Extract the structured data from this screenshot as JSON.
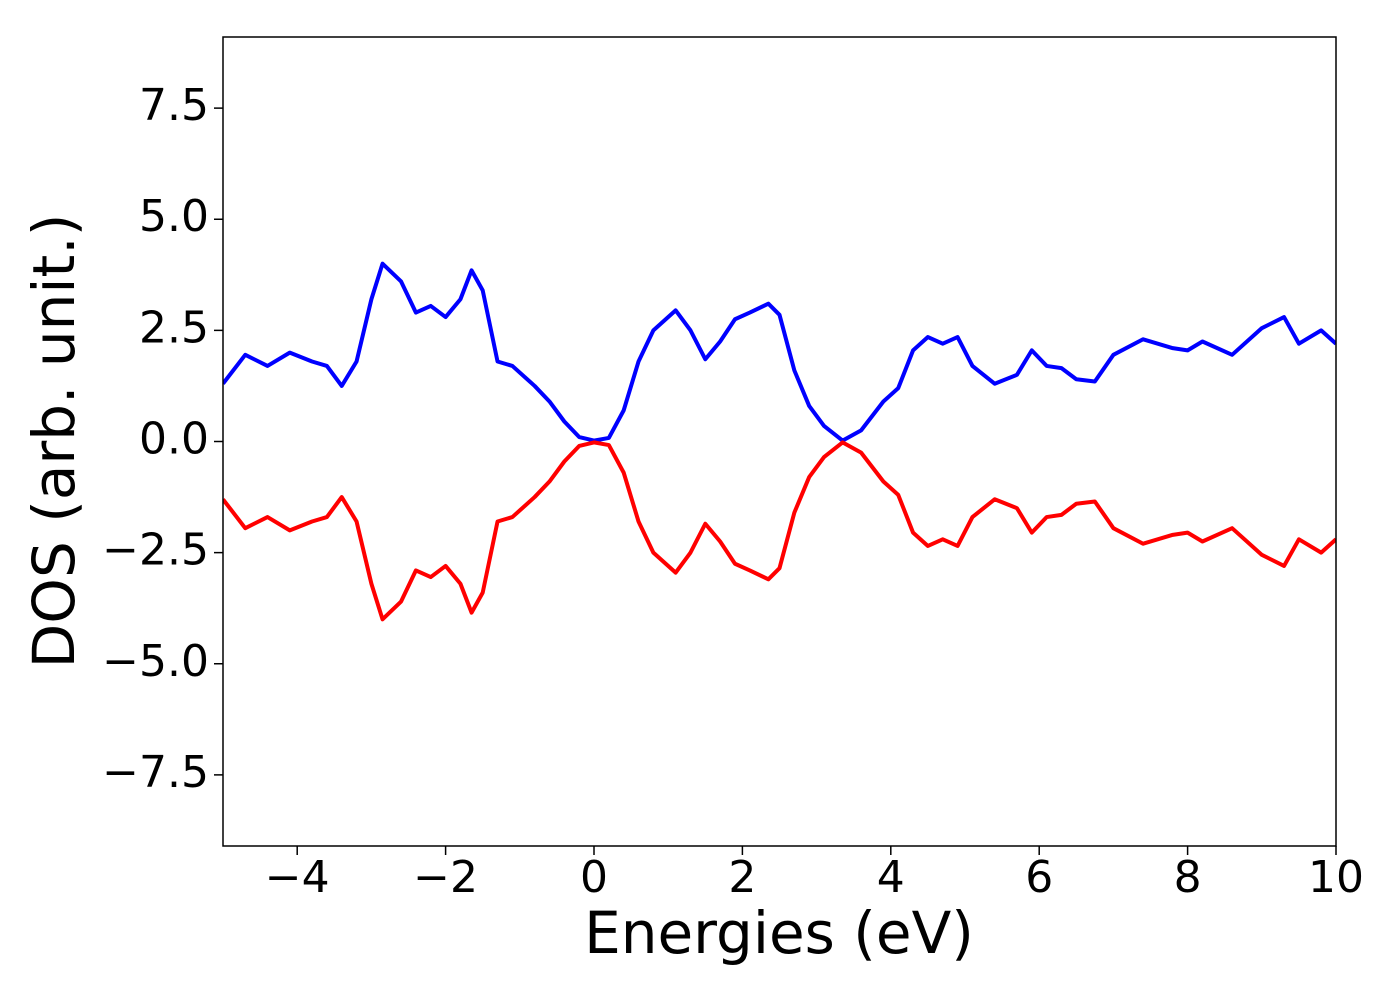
{
  "chart_data": {
    "type": "line",
    "xlabel": "Energies (eV)",
    "ylabel": "DOS (arb. unit.)",
    "x": [
      -5,
      -4.7,
      -4.4,
      -4.1,
      -3.8,
      -3.6,
      -3.4,
      -3.2,
      -3.0,
      -2.85,
      -2.6,
      -2.4,
      -2.2,
      -2.0,
      -1.8,
      -1.65,
      -1.5,
      -1.3,
      -1.1,
      -0.8,
      -0.6,
      -0.4,
      -0.2,
      0,
      0.2,
      0.4,
      0.6,
      0.8,
      1.1,
      1.3,
      1.5,
      1.7,
      1.9,
      2.1,
      2.35,
      2.5,
      2.7,
      2.9,
      3.1,
      3.35,
      3.6,
      3.9,
      4.1,
      4.3,
      4.5,
      4.7,
      4.9,
      5.1,
      5.4,
      5.7,
      5.9,
      6.1,
      6.3,
      6.5,
      6.75,
      7.0,
      7.4,
      7.8,
      8.0,
      8.2,
      8.6,
      9.0,
      9.3,
      9.5,
      9.8,
      10
    ],
    "series": [
      {
        "color": "#0000ff",
        "values": [
          1.3,
          1.95,
          1.7,
          2.0,
          1.8,
          1.7,
          1.25,
          1.8,
          3.2,
          4.0,
          3.6,
          2.9,
          3.05,
          2.8,
          3.2,
          3.85,
          3.4,
          1.8,
          1.7,
          1.25,
          0.9,
          0.45,
          0.1,
          0.02,
          0.08,
          0.7,
          1.8,
          2.5,
          2.95,
          2.5,
          1.85,
          2.25,
          2.75,
          2.9,
          3.1,
          2.85,
          1.6,
          0.8,
          0.35,
          0.02,
          0.25,
          0.9,
          1.2,
          2.05,
          2.35,
          2.2,
          2.35,
          1.7,
          1.3,
          1.5,
          2.05,
          1.7,
          1.65,
          1.4,
          1.35,
          1.95,
          2.3,
          2.1,
          2.05,
          2.25,
          1.95,
          2.55,
          2.8,
          2.2,
          2.5,
          2.2
        ]
      },
      {
        "color": "#ff0000",
        "values": [
          -1.3,
          -1.95,
          -1.7,
          -2.0,
          -1.8,
          -1.7,
          -1.25,
          -1.8,
          -3.2,
          -4.0,
          -3.6,
          -2.9,
          -3.05,
          -2.8,
          -3.2,
          -3.85,
          -3.4,
          -1.8,
          -1.7,
          -1.25,
          -0.9,
          -0.45,
          -0.1,
          -0.02,
          -0.08,
          -0.7,
          -1.8,
          -2.5,
          -2.95,
          -2.5,
          -1.85,
          -2.25,
          -2.75,
          -2.9,
          -3.1,
          -2.85,
          -1.6,
          -0.8,
          -0.35,
          -0.02,
          -0.25,
          -0.9,
          -1.2,
          -2.05,
          -2.35,
          -2.2,
          -2.35,
          -1.7,
          -1.3,
          -1.5,
          -2.05,
          -1.7,
          -1.65,
          -1.4,
          -1.35,
          -1.95,
          -2.3,
          -2.1,
          -2.05,
          -2.25,
          -1.95,
          -2.55,
          -2.8,
          -2.2,
          -2.5,
          -2.2
        ]
      }
    ],
    "xlim": [
      -5,
      10
    ],
    "xticks": [
      {
        "value": -4,
        "label": "−4"
      },
      {
        "value": -2,
        "label": "−2"
      },
      0,
      2,
      4,
      6,
      8,
      10
    ],
    "ylim": [
      -9.1,
      9.1
    ],
    "yticks": [
      {
        "value": -7.5,
        "label": "−7.5"
      },
      {
        "value": -5,
        "label": "−5.0"
      },
      {
        "value": -2.5,
        "label": "−2.5"
      },
      {
        "value": 0,
        "label": "0.0"
      },
      2.5,
      {
        "value": 5,
        "label": "5.0"
      },
      7.5
    ],
    "grid": false
  }
}
